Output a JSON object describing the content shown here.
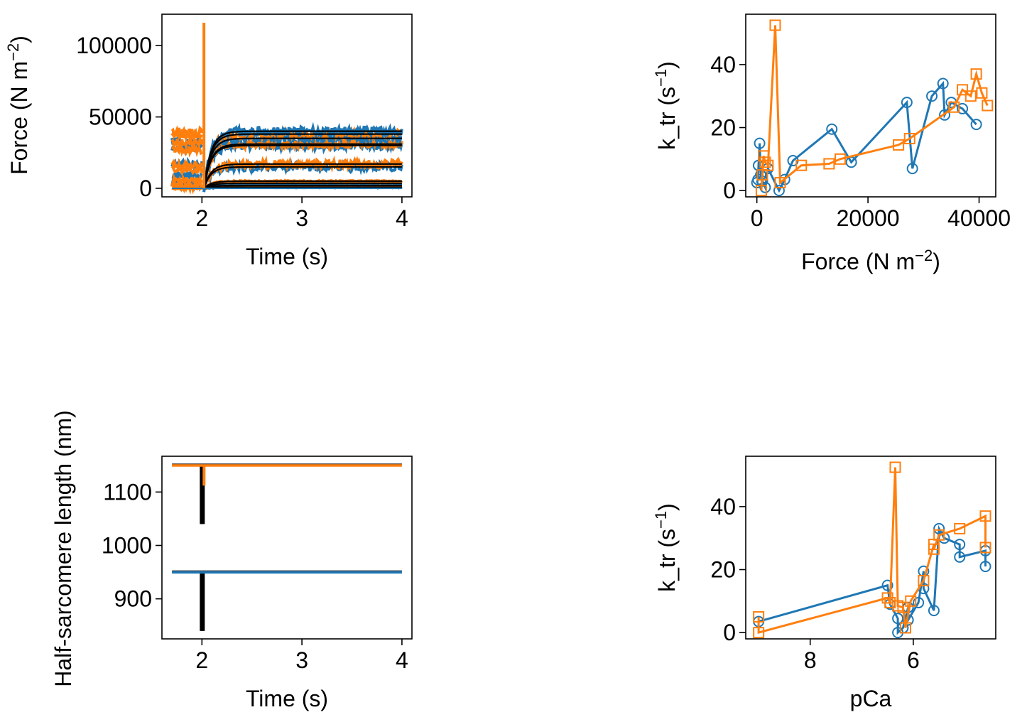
{
  "colors": {
    "blue": "#1f77b4",
    "orange": "#ff7f0e",
    "fit": "#000000"
  },
  "chart_data": [
    {
      "id": "force_time",
      "type": "line",
      "xlabel": "Time (s)",
      "ylabel": "Force (N m",
      "ylabel_sup": "−2",
      "ylabel_end": ")",
      "xlim": [
        1.6,
        4.1
      ],
      "ylim": [
        -6000,
        122000
      ],
      "xticks": [
        2,
        3,
        4
      ],
      "yticks": [
        0,
        50000,
        100000
      ],
      "pre_levels_blue": [
        3000,
        9000,
        17000,
        28000,
        33000
      ],
      "pre_levels_orange": [
        0,
        1500,
        5000,
        13000,
        16000,
        27000,
        32000,
        37000,
        40000
      ],
      "recovery_levels": [
        800,
        2000,
        3500,
        5000,
        15000,
        17000,
        30000,
        31000,
        35000,
        38000,
        40000
      ],
      "spike_x": 2.02,
      "spike_max": 116000
    },
    {
      "id": "ktr_force",
      "type": "line",
      "xlabel": "Force (N m",
      "xlabel_sup": "−2",
      "xlabel_end": ")",
      "ylabel": "k_tr (s",
      "ylabel_sup": "−1",
      "ylabel_end": ")",
      "xlim": [
        -2000,
        43000
      ],
      "ylim": [
        -2,
        56
      ],
      "xticks": [
        0,
        20000,
        40000
      ],
      "yticks": [
        0,
        20,
        40
      ],
      "series": [
        {
          "marker": "circle",
          "color": "blue",
          "x": [
            0,
            200,
            300,
            500,
            700,
            1000,
            1500,
            2000,
            4000,
            5000,
            6500,
            13500,
            17000,
            27000,
            28000,
            31500,
            33500,
            33800,
            35000,
            37000,
            39500
          ],
          "y": [
            2.5,
            3.5,
            8,
            15,
            5,
            3,
            1,
            7,
            0,
            3.5,
            9.5,
            19.5,
            9,
            28,
            7,
            30,
            34,
            24,
            28,
            26,
            21
          ]
        },
        {
          "marker": "square",
          "color": "orange",
          "x": [
            800,
            1000,
            1200,
            1500,
            2000,
            3300,
            4200,
            8000,
            13000,
            15000,
            25500,
            27500,
            35500,
            37000,
            38500,
            39500,
            40500,
            41500
          ],
          "y": [
            0,
            5,
            11,
            9,
            8,
            52.5,
            2.5,
            8,
            8.5,
            10,
            14.5,
            16.5,
            26.5,
            32,
            30,
            37,
            31,
            27
          ]
        }
      ]
    },
    {
      "id": "hsl_time",
      "type": "line",
      "xlabel": "Time (s)",
      "ylabel": "Half-sarcomere length (nm)",
      "xlim": [
        1.6,
        4.1
      ],
      "ylim": [
        825,
        1167
      ],
      "xticks": [
        2,
        3,
        4
      ],
      "yticks": [
        900,
        1000,
        1100
      ],
      "orange_level": 1150,
      "blue_level": 950,
      "black_min_upper": 1040,
      "black_min_lower": 840,
      "orange_dip": 1112,
      "step_x": 2.0
    },
    {
      "id": "ktr_pca",
      "type": "line",
      "xlabel": "pCa",
      "ylabel": "k_tr (s",
      "ylabel_sup": "−1",
      "ylabel_end": ")",
      "xlim": [
        9.25,
        4.4
      ],
      "ylim": [
        -2,
        56
      ],
      "xticks": [
        8,
        6
      ],
      "yticks": [
        0,
        20,
        40
      ],
      "series": [
        {
          "marker": "circle",
          "color": "blue",
          "x": [
            9.0,
            6.5,
            6.45,
            6.3,
            6.3,
            6.2,
            6.1,
            6.1,
            5.9,
            5.8,
            5.8,
            5.6,
            5.5,
            5.4,
            5.1,
            5.1,
            4.6,
            4.6
          ],
          "y": [
            3.5,
            15,
            9,
            4.5,
            0,
            1.5,
            8,
            4,
            9.5,
            19.5,
            14,
            7,
            33,
            30,
            28,
            24,
            26,
            21
          ]
        },
        {
          "marker": "square",
          "color": "orange",
          "x": [
            9.0,
            9.0,
            6.5,
            6.45,
            6.35,
            6.3,
            6.2,
            6.15,
            6.05,
            5.8,
            5.6,
            5.6,
            5.5,
            5.1,
            4.6,
            4.6
          ],
          "y": [
            5,
            0,
            11,
            9.5,
            52.5,
            8.5,
            8,
            1.5,
            10,
            16.5,
            28,
            26.5,
            31,
            33,
            37,
            27
          ]
        }
      ]
    }
  ]
}
